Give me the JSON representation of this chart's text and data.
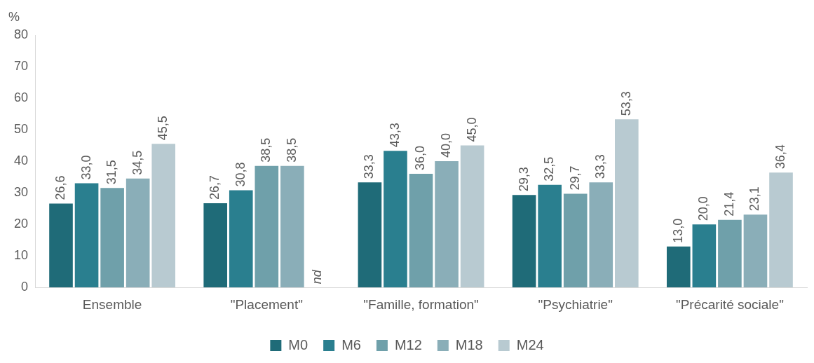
{
  "chart_data": {
    "type": "bar",
    "ylabel": "%",
    "categories": [
      "Ensemble",
      "\"Placement\"",
      "\"Famille, formation\"",
      "\"Psychiatrie\"",
      "\"Précarité sociale\""
    ],
    "series": [
      {
        "name": "M0",
        "color": "#1f6b78",
        "values": [
          26.6,
          26.7,
          33.3,
          29.3,
          13.0
        ],
        "value_labels": [
          "26,6",
          "26,7",
          "33,3",
          "29,3",
          "13,0"
        ]
      },
      {
        "name": "M6",
        "color": "#2a7f8f",
        "values": [
          33.0,
          30.8,
          43.3,
          32.5,
          20.0
        ],
        "value_labels": [
          "33,0",
          "30,8",
          "43,3",
          "32,5",
          "20,0"
        ]
      },
      {
        "name": "M12",
        "color": "#6fa0aa",
        "values": [
          31.5,
          38.5,
          36.0,
          29.7,
          21.4
        ],
        "value_labels": [
          "31,5",
          "38,5",
          "36,0",
          "29,7",
          "21,4"
        ]
      },
      {
        "name": "M18",
        "color": "#8aaeb8",
        "values": [
          34.5,
          38.5,
          40.0,
          33.3,
          23.1
        ],
        "value_labels": [
          "34,5",
          "38,5",
          "40,0",
          "33,3",
          "23,1"
        ]
      },
      {
        "name": "M24",
        "color": "#b8cad1",
        "values": [
          45.5,
          null,
          45.0,
          53.3,
          36.4
        ],
        "value_labels": [
          "45,5",
          "nd",
          "45,0",
          "53,3",
          "36,4"
        ]
      }
    ],
    "ylim": [
      0,
      80
    ],
    "yticks": [
      0,
      10,
      20,
      30,
      40,
      50,
      60,
      70,
      80
    ],
    "grid": false,
    "legend": "bottom"
  }
}
